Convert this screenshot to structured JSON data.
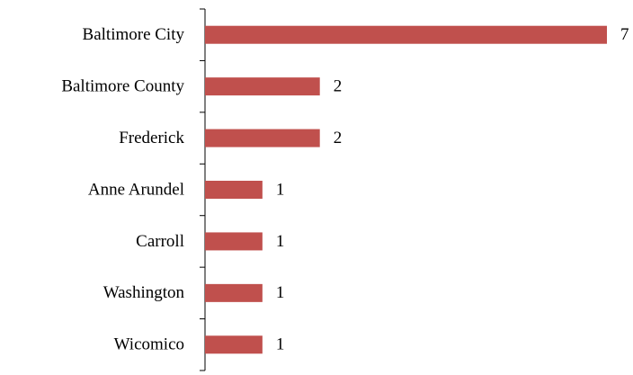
{
  "chart_data": {
    "type": "bar",
    "orientation": "horizontal",
    "categories": [
      "Baltimore City",
      "Baltimore County",
      "Frederick",
      "Anne Arundel",
      "Carroll",
      "Washington",
      "Wicomico"
    ],
    "values": [
      7,
      2,
      2,
      1,
      1,
      1,
      1
    ],
    "color": "#c0504d"
  }
}
